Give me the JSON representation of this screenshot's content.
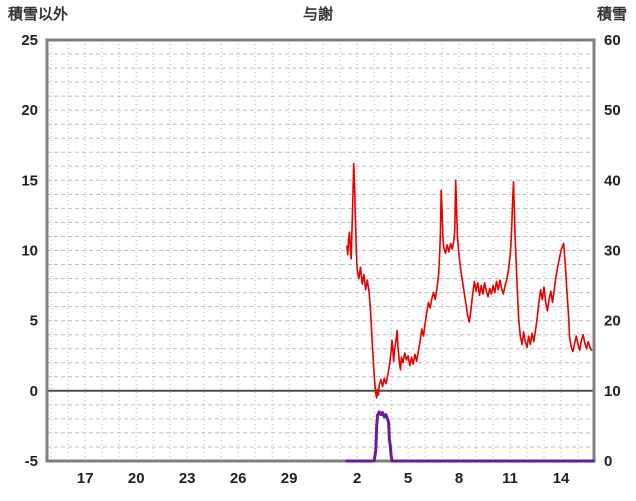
{
  "chart_data": {
    "type": "line",
    "title": "与謝",
    "legend": "none",
    "grid": true,
    "left_axis": {
      "label": "積雪以外",
      "lim": [
        -5,
        25
      ],
      "ticks": [
        25,
        20,
        15,
        10,
        5,
        0,
        -5
      ],
      "grid_step": 1
    },
    "right_axis": {
      "label": "積雪",
      "lim": [
        0,
        60
      ],
      "ticks": [
        60,
        50,
        40,
        30,
        20,
        10,
        0
      ]
    },
    "x_axis": {
      "lim": [
        14.75,
        46.94
      ],
      "tick_positions": [
        17,
        20,
        23,
        26,
        29,
        33,
        36,
        39,
        42,
        45
      ],
      "tick_labels": [
        "17",
        "20",
        "23",
        "26",
        "29",
        "2",
        "5",
        "8",
        "11",
        "14"
      ],
      "grid_step": 1
    },
    "zero_line": {
      "axis": "left",
      "value": 0
    },
    "series": [
      {
        "name": "積雪以外",
        "axis": "left",
        "color": "#e60000",
        "width": 1.6,
        "points": [
          [
            32.4,
            10.3
          ],
          [
            32.45,
            9.7
          ],
          [
            32.5,
            10.8
          ],
          [
            32.55,
            11.3
          ],
          [
            32.6,
            10.2
          ],
          [
            32.65,
            9.4
          ],
          [
            32.7,
            11.5
          ],
          [
            32.75,
            13.8
          ],
          [
            32.8,
            16.2
          ],
          [
            32.85,
            14.6
          ],
          [
            32.9,
            12.2
          ],
          [
            32.95,
            10.0
          ],
          [
            33.0,
            8.7
          ],
          [
            33.1,
            8.0
          ],
          [
            33.2,
            8.8
          ],
          [
            33.3,
            7.6
          ],
          [
            33.4,
            8.3
          ],
          [
            33.5,
            7.2
          ],
          [
            33.6,
            7.9
          ],
          [
            33.7,
            7.1
          ],
          [
            33.75,
            6.3
          ],
          [
            33.8,
            5.5
          ],
          [
            33.9,
            3.2
          ],
          [
            34.0,
            1.2
          ],
          [
            34.05,
            0.4
          ],
          [
            34.1,
            -0.2
          ],
          [
            34.15,
            -0.5
          ],
          [
            34.2,
            0.1
          ],
          [
            34.25,
            -0.3
          ],
          [
            34.3,
            0.4
          ],
          [
            34.4,
            0.8
          ],
          [
            34.5,
            0.3
          ],
          [
            34.6,
            0.9
          ],
          [
            34.7,
            0.5
          ],
          [
            34.8,
            1.1
          ],
          [
            34.9,
            1.8
          ],
          [
            35.0,
            2.8
          ],
          [
            35.05,
            3.6
          ],
          [
            35.1,
            3.0
          ],
          [
            35.15,
            2.1
          ],
          [
            35.2,
            2.9
          ],
          [
            35.3,
            3.7
          ],
          [
            35.35,
            4.3
          ],
          [
            35.4,
            3.2
          ],
          [
            35.5,
            1.9
          ],
          [
            35.55,
            1.5
          ],
          [
            35.6,
            2.4
          ],
          [
            35.7,
            2.0
          ],
          [
            35.8,
            2.7
          ],
          [
            35.9,
            2.2
          ],
          [
            36.0,
            2.5
          ],
          [
            36.1,
            1.8
          ],
          [
            36.2,
            2.4
          ],
          [
            36.3,
            1.9
          ],
          [
            36.4,
            2.6
          ],
          [
            36.5,
            2.1
          ],
          [
            36.6,
            2.8
          ],
          [
            36.7,
            3.5
          ],
          [
            36.8,
            4.4
          ],
          [
            36.9,
            3.9
          ],
          [
            37.0,
            4.8
          ],
          [
            37.1,
            5.6
          ],
          [
            37.2,
            6.3
          ],
          [
            37.3,
            5.9
          ],
          [
            37.4,
            6.6
          ],
          [
            37.5,
            7.0
          ],
          [
            37.6,
            6.5
          ],
          [
            37.7,
            7.3
          ],
          [
            37.8,
            8.4
          ],
          [
            37.85,
            9.5
          ],
          [
            37.9,
            11.2
          ],
          [
            37.95,
            14.3
          ],
          [
            38.0,
            12.8
          ],
          [
            38.05,
            11.0
          ],
          [
            38.1,
            10.2
          ],
          [
            38.2,
            9.8
          ],
          [
            38.3,
            10.4
          ],
          [
            38.4,
            9.9
          ],
          [
            38.5,
            10.5
          ],
          [
            38.6,
            10.1
          ],
          [
            38.7,
            10.8
          ],
          [
            38.75,
            11.5
          ],
          [
            38.8,
            15.0
          ],
          [
            38.85,
            13.2
          ],
          [
            38.9,
            11.0
          ],
          [
            39.0,
            9.6
          ],
          [
            39.1,
            8.6
          ],
          [
            39.2,
            7.8
          ],
          [
            39.3,
            7.0
          ],
          [
            39.4,
            6.2
          ],
          [
            39.5,
            5.4
          ],
          [
            39.6,
            4.9
          ],
          [
            39.7,
            5.8
          ],
          [
            39.8,
            6.9
          ],
          [
            39.9,
            7.8
          ],
          [
            40.0,
            7.1
          ],
          [
            40.1,
            7.7
          ],
          [
            40.2,
            6.8
          ],
          [
            40.3,
            7.5
          ],
          [
            40.4,
            6.9
          ],
          [
            40.5,
            7.7
          ],
          [
            40.6,
            7.1
          ],
          [
            40.7,
            6.7
          ],
          [
            40.8,
            7.3
          ],
          [
            40.9,
            6.9
          ],
          [
            41.0,
            7.5
          ],
          [
            41.1,
            7.0
          ],
          [
            41.2,
            7.8
          ],
          [
            41.3,
            7.2
          ],
          [
            41.4,
            7.9
          ],
          [
            41.5,
            7.3
          ],
          [
            41.6,
            6.9
          ],
          [
            41.7,
            7.5
          ],
          [
            41.8,
            7.9
          ],
          [
            41.9,
            8.6
          ],
          [
            42.0,
            9.6
          ],
          [
            42.05,
            10.4
          ],
          [
            42.1,
            11.8
          ],
          [
            42.15,
            13.5
          ],
          [
            42.2,
            14.9
          ],
          [
            42.25,
            13.0
          ],
          [
            42.3,
            10.8
          ],
          [
            42.4,
            7.9
          ],
          [
            42.5,
            5.2
          ],
          [
            42.6,
            3.9
          ],
          [
            42.7,
            3.3
          ],
          [
            42.8,
            4.2
          ],
          [
            42.9,
            3.5
          ],
          [
            43.0,
            3.1
          ],
          [
            43.1,
            3.9
          ],
          [
            43.2,
            3.3
          ],
          [
            43.3,
            4.1
          ],
          [
            43.4,
            3.5
          ],
          [
            43.5,
            4.3
          ],
          [
            43.6,
            5.2
          ],
          [
            43.7,
            6.3
          ],
          [
            43.8,
            7.2
          ],
          [
            43.9,
            6.5
          ],
          [
            44.0,
            7.4
          ],
          [
            44.1,
            6.3
          ],
          [
            44.2,
            5.7
          ],
          [
            44.3,
            6.5
          ],
          [
            44.4,
            7.1
          ],
          [
            44.5,
            6.3
          ],
          [
            44.6,
            7.2
          ],
          [
            44.7,
            8.1
          ],
          [
            44.8,
            8.8
          ],
          [
            44.9,
            9.4
          ],
          [
            45.0,
            10.0
          ],
          [
            45.15,
            10.5
          ],
          [
            45.25,
            9.0
          ],
          [
            45.35,
            7.0
          ],
          [
            45.45,
            5.2
          ],
          [
            45.5,
            3.9
          ],
          [
            45.6,
            3.1
          ],
          [
            45.7,
            2.8
          ],
          [
            45.8,
            3.4
          ],
          [
            45.9,
            3.9
          ],
          [
            46.0,
            3.3
          ],
          [
            46.1,
            2.9
          ],
          [
            46.2,
            3.6
          ],
          [
            46.3,
            4.0
          ],
          [
            46.4,
            3.4
          ],
          [
            46.5,
            3.0
          ],
          [
            46.6,
            3.5
          ],
          [
            46.7,
            3.1
          ],
          [
            46.8,
            2.9
          ]
        ]
      },
      {
        "name": "積雪",
        "axis": "right",
        "color": "#6a1b9a",
        "width": 3,
        "points": [
          [
            32.4,
            0
          ],
          [
            34.0,
            0
          ],
          [
            34.1,
            1.5
          ],
          [
            34.15,
            5.0
          ],
          [
            34.2,
            6.5
          ],
          [
            34.3,
            7.0
          ],
          [
            34.4,
            6.6
          ],
          [
            34.5,
            6.9
          ],
          [
            34.6,
            6.3
          ],
          [
            34.7,
            6.6
          ],
          [
            34.8,
            5.9
          ],
          [
            34.85,
            5.5
          ],
          [
            34.9,
            3.0
          ],
          [
            34.95,
            2.2
          ],
          [
            35.0,
            0.8
          ],
          [
            35.05,
            0
          ],
          [
            46.9,
            0
          ]
        ]
      }
    ]
  },
  "colors": {
    "grid_vertical": "#b5b5b5",
    "grid_horizontal": "#bdbdbd",
    "zero_line": "#4d4d4d",
    "frame": "#7f7f7f",
    "tick_text": "#1f1f1f",
    "title_text": "#333333"
  }
}
